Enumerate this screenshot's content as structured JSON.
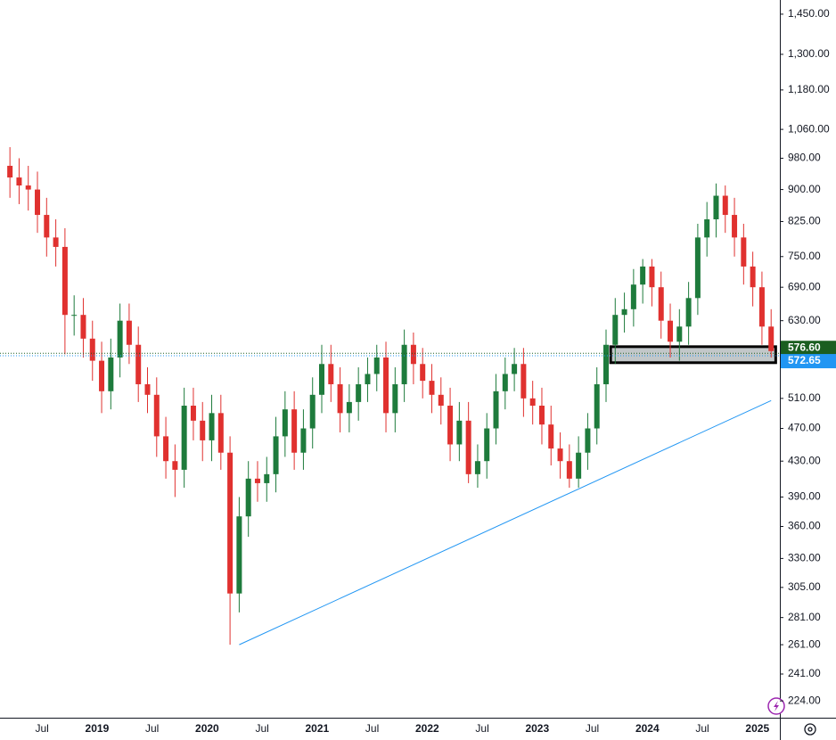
{
  "chart_data": {
    "type": "candlestick",
    "categories": [
      null,
      null,
      null,
      null,
      "Jul",
      null,
      null,
      null,
      null,
      null,
      "2019",
      null,
      null,
      null,
      null,
      null,
      "Jul",
      null,
      null,
      null,
      null,
      null,
      "2020",
      null,
      null,
      null,
      null,
      null,
      "Jul",
      null,
      null,
      null,
      null,
      null,
      "2021",
      null,
      null,
      null,
      null,
      null,
      "Jul",
      null,
      null,
      null,
      null,
      null,
      "2022",
      null,
      null,
      null,
      null,
      null,
      "Jul",
      null,
      null,
      null,
      null,
      null,
      "2023",
      null,
      null,
      null,
      null,
      null,
      "Jul",
      null,
      null,
      null,
      null,
      null,
      "2024",
      null,
      null,
      null,
      null,
      null,
      "Jul",
      null,
      null,
      null,
      null,
      null,
      "2025",
      null
    ],
    "open": [
      960,
      930,
      910,
      900,
      840,
      790,
      770,
      640,
      640,
      600,
      565,
      520,
      570,
      630,
      590,
      530,
      515,
      460,
      430,
      420,
      500,
      480,
      455,
      490,
      440,
      300,
      370,
      410,
      405,
      415,
      460,
      495,
      440,
      470,
      515,
      560,
      530,
      490,
      505,
      530,
      545,
      570,
      490,
      530,
      590,
      560,
      535,
      515,
      500,
      450,
      480,
      415,
      430,
      470,
      520,
      545,
      560,
      510,
      500,
      475,
      445,
      430,
      410,
      440,
      470,
      530,
      590,
      640,
      650,
      695,
      730,
      690,
      630,
      595,
      620,
      670,
      790,
      830,
      885,
      840,
      790,
      730,
      690,
      620
    ],
    "high": [
      1010,
      980,
      960,
      945,
      880,
      830,
      810,
      675,
      670,
      630,
      595,
      600,
      660,
      660,
      620,
      555,
      540,
      485,
      450,
      525,
      525,
      505,
      515,
      515,
      460,
      390,
      430,
      430,
      435,
      485,
      520,
      520,
      495,
      540,
      590,
      590,
      555,
      530,
      555,
      570,
      590,
      595,
      555,
      615,
      610,
      585,
      560,
      540,
      525,
      505,
      505,
      450,
      490,
      545,
      570,
      585,
      585,
      535,
      525,
      500,
      465,
      450,
      460,
      490,
      555,
      615,
      670,
      680,
      725,
      745,
      745,
      720,
      660,
      650,
      700,
      820,
      870,
      915,
      910,
      880,
      820,
      760,
      720,
      650
    ],
    "low": [
      880,
      865,
      850,
      800,
      750,
      730,
      575,
      605,
      570,
      535,
      490,
      495,
      540,
      560,
      505,
      490,
      435,
      410,
      390,
      400,
      455,
      430,
      430,
      420,
      261,
      285,
      350,
      385,
      385,
      395,
      435,
      420,
      420,
      445,
      490,
      505,
      465,
      465,
      480,
      505,
      520,
      465,
      465,
      505,
      530,
      510,
      490,
      475,
      430,
      430,
      405,
      400,
      410,
      450,
      495,
      520,
      485,
      475,
      450,
      425,
      410,
      400,
      400,
      420,
      450,
      505,
      560,
      610,
      620,
      660,
      655,
      600,
      570,
      565,
      590,
      640,
      750,
      790,
      800,
      750,
      695,
      655,
      590,
      570
    ],
    "close": [
      930,
      910,
      900,
      840,
      790,
      770,
      640,
      640,
      600,
      565,
      520,
      570,
      630,
      590,
      530,
      515,
      460,
      430,
      420,
      500,
      480,
      455,
      490,
      440,
      300,
      370,
      410,
      405,
      415,
      460,
      495,
      440,
      470,
      515,
      560,
      530,
      490,
      505,
      530,
      545,
      570,
      490,
      530,
      590,
      560,
      535,
      515,
      500,
      450,
      480,
      415,
      430,
      470,
      520,
      545,
      560,
      510,
      500,
      475,
      445,
      430,
      410,
      440,
      470,
      530,
      590,
      640,
      650,
      695,
      730,
      690,
      630,
      595,
      620,
      670,
      790,
      830,
      885,
      840,
      790,
      730,
      690,
      620,
      580
    ],
    "up_color": "#1e7b3c",
    "down_color": "#e0312f",
    "log_scale": true,
    "ylim": [
      214,
      1507
    ],
    "yticks": [
      {
        "value": 1450,
        "label": "1,450.00"
      },
      {
        "value": 1300,
        "label": "1,300.00"
      },
      {
        "value": 1180,
        "label": "1,180.00"
      },
      {
        "value": 1060,
        "label": "1,060.00"
      },
      {
        "value": 980,
        "label": "980.00"
      },
      {
        "value": 900,
        "label": "900.00"
      },
      {
        "value": 825,
        "label": "825.00"
      },
      {
        "value": 750,
        "label": "750.00"
      },
      {
        "value": 690,
        "label": "690.00"
      },
      {
        "value": 630,
        "label": "630.00"
      },
      {
        "value": 510,
        "label": "510.00"
      },
      {
        "value": 470,
        "label": "470.00"
      },
      {
        "value": 430,
        "label": "430.00"
      },
      {
        "value": 390,
        "label": "390.00"
      },
      {
        "value": 360,
        "label": "360.00"
      },
      {
        "value": 330,
        "label": "330.00"
      },
      {
        "value": 305,
        "label": "305.00"
      },
      {
        "value": 281,
        "label": "281.00"
      },
      {
        "value": 261,
        "label": "261.00"
      },
      {
        "value": 241,
        "label": "241.00"
      },
      {
        "value": 224,
        "label": "224.00"
      }
    ],
    "last_price": {
      "value": 576.6,
      "label": "576.60",
      "color": "#1b5e20"
    },
    "price_line": {
      "value": 572.65,
      "label": "572.65",
      "color": "#2196f3"
    },
    "trendline": {
      "x": [
        25,
        83
      ],
      "y": [
        261,
        507
      ],
      "color": "#2196f3"
    },
    "zone": {
      "x": [
        66,
        83
      ],
      "y": [
        562,
        587
      ]
    }
  }
}
